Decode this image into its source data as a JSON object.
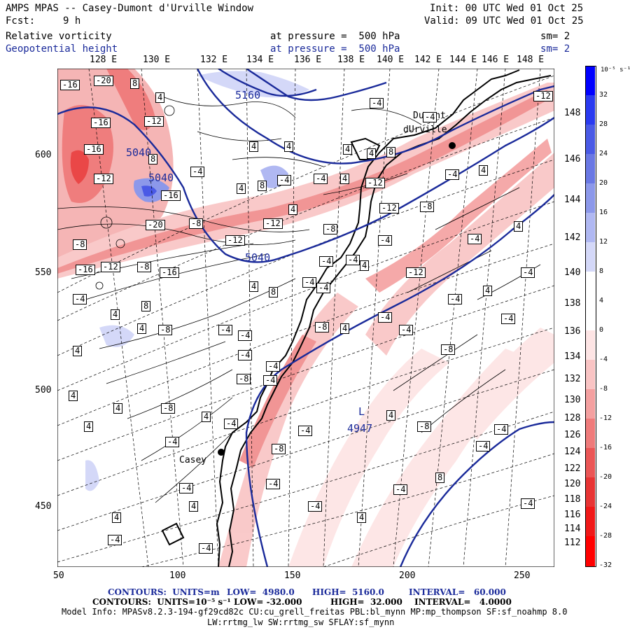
{
  "header": {
    "title": "AMPS MPAS -- Casey-Dumont d'Urville Window",
    "fcst_label": "Fcst:",
    "fcst_value": "9 h",
    "init": "Init: 00 UTC Wed 01 Oct 25",
    "valid": "Valid: 09 UTC Wed 01 Oct 25",
    "field1": "Relative vorticity",
    "field1_level": "at pressure =  500 hPa",
    "field1_sm": "sm= 2",
    "field2": "Geopotential height",
    "field2_level": "at pressure =  500 hPa",
    "field2_sm": "sm= 2"
  },
  "top_longitudes": [
    "128 E",
    "130 E",
    "132 E",
    "134 E",
    "136 E",
    "138 E",
    "140 E",
    "142 E",
    "144 E",
    "146 E",
    "148 E"
  ],
  "left_axis": [
    "600",
    "550",
    "500",
    "450"
  ],
  "bottom_axis": [
    "50",
    "100",
    "150",
    "200",
    "250"
  ],
  "right_latitudes": [
    "148 E",
    "146 E",
    "144 E",
    "142 E",
    "140 E",
    "138 E",
    "136 E",
    "134 E",
    "132 E",
    "130 E",
    "128 E",
    "126 E",
    "124 E",
    "122 E",
    "120 E",
    "118 E",
    "116 E",
    "114 E",
    "112 E"
  ],
  "colorbar": {
    "unit": "10⁻⁵ s⁻¹",
    "ticks": [
      "32",
      "28",
      "24",
      "20",
      "16",
      "12",
      "8",
      "4",
      "0",
      "-4",
      "-8",
      "-12",
      "-16",
      "-20",
      "-24",
      "-28",
      "-32"
    ],
    "colors": [
      "#0000ff",
      "#2a3af0",
      "#4a5ae6",
      "#6a78e4",
      "#8c98ea",
      "#b0b8f2",
      "#d4d8f8",
      "#ffffff",
      "#ffffff",
      "#fde4e4",
      "#f9c4c4",
      "#f4a0a0",
      "#ef7b7b",
      "#eb5656",
      "#e83434",
      "#f01818",
      "#ff0000"
    ]
  },
  "map_labels": {
    "dumont": "Dumont",
    "durville": "dUrville",
    "casey": "Casey",
    "low": "L",
    "low_value": "4947",
    "h5160": "5160",
    "h5040a": "5040",
    "h5040b": "5040",
    "h5040c": "5040"
  },
  "contour_boxes": [
    "-16",
    "-20",
    "8",
    "4",
    "-16",
    "-12",
    "-16",
    "4",
    "4",
    "8",
    "-4",
    "4",
    "-12",
    "-16",
    "8",
    "-4",
    "-4",
    "4",
    "-12",
    "4",
    "4",
    "8",
    "-4",
    "-4",
    "-8",
    "-4",
    "4",
    "-12",
    "-20",
    "-8",
    "-8",
    "-12",
    "-16",
    "-12",
    "-8",
    "-16",
    "-12",
    "4",
    "-8",
    "-4",
    "-4",
    "-4",
    "4",
    "-12",
    "-4",
    "4",
    "-12",
    "-4",
    "-4",
    "8",
    "4",
    "4",
    "-8",
    "-4",
    "-4",
    "4",
    "8",
    "-4",
    "-4",
    "-4",
    "-8",
    "4",
    "-4",
    "-8",
    "4",
    "-4",
    "-4",
    "4",
    "-4",
    "-4",
    "-8",
    "-4",
    "4",
    "4",
    "4",
    "-4",
    "-8",
    "4",
    "-4",
    "-8",
    "-4",
    "4",
    "-8",
    "-4",
    "-4",
    "8",
    "-4",
    "-4",
    "-4",
    "4",
    "-4",
    "4",
    "-4",
    "4",
    "-4",
    "-4"
  ],
  "footer": {
    "line1_contours": "CONTOURS:  UNITS=m",
    "line1_low": "LOW=  4980.0",
    "line1_high": "HIGH=  5160.0",
    "line1_interval": "INTERVAL=   60.000",
    "line2_contours": "CONTOURS:  UNITS=10⁻⁵ s⁻¹",
    "line2_low": "LOW= -32.000",
    "line2_high": "HIGH=  32.000",
    "line2_interval": "INTERVAL=   4.0000",
    "model_info": "Model Info: MPASv8.2.3-194-gf29cd82c CU:cu_grell_freitas PBL:bl_mynn MP:mp_thompson SF:sf_noahmp 8.0",
    "model_info2": "LW:rrtmg_lw SW:rrtmg_sw SFLAY:sf_mynn"
  }
}
